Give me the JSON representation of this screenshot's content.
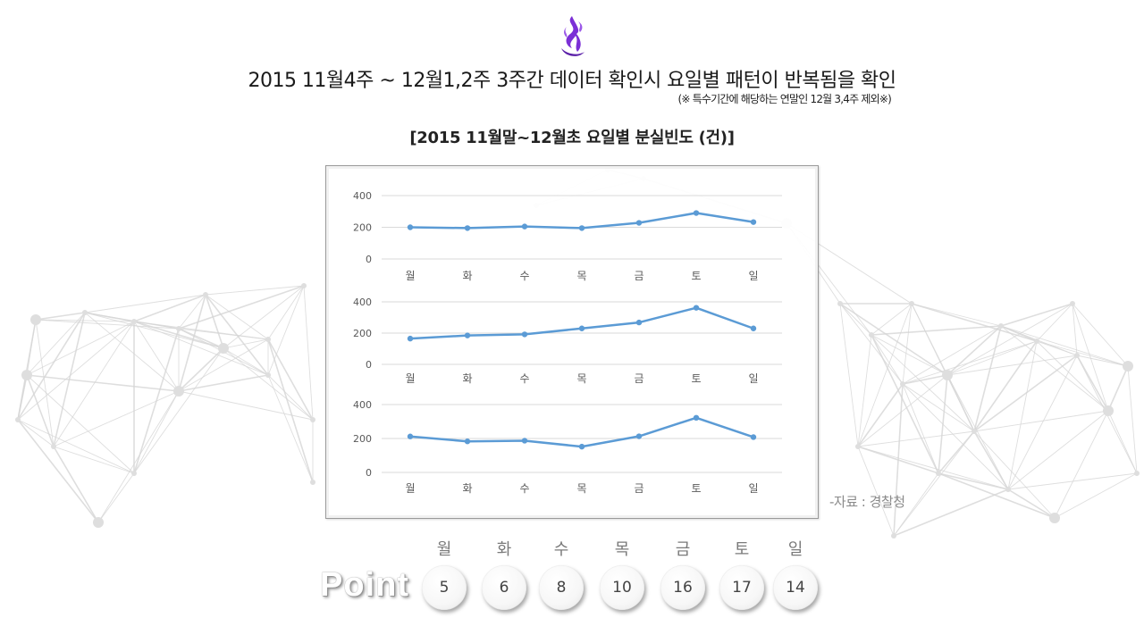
{
  "header": {
    "title": "2015 11월4주 ~ 12월1,2주 3주간 데이터 확인시 요일별 패턴이 반복됨을 확인",
    "note": "(※ 특수기간에 해당하는 연말인 12월 3,4주 제외※)"
  },
  "chart_title": "[2015  11월말~12월초  요일별 분실빈도 (건)]",
  "source": "-자료 : 경찰청",
  "colors": {
    "line": "#5b9bd5",
    "logo": "#7b2fd6",
    "grid": "#d9d9d9"
  },
  "chart_data": [
    {
      "type": "line",
      "categories": [
        "월",
        "화",
        "수",
        "목",
        "금",
        "토",
        "일"
      ],
      "series": [
        {
          "values": [
            200,
            195,
            205,
            195,
            228,
            290,
            233
          ]
        }
      ],
      "yticks": [
        0,
        200,
        400
      ],
      "ylim": [
        0,
        400
      ],
      "grid": true
    },
    {
      "type": "line",
      "categories": [
        "월",
        "화",
        "수",
        "목",
        "금",
        "토",
        "일"
      ],
      "series": [
        {
          "values": [
            165,
            185,
            192,
            230,
            268,
            362,
            230
          ]
        }
      ],
      "yticks": [
        0,
        200,
        400
      ],
      "ylim": [
        0,
        400
      ],
      "grid": true
    },
    {
      "type": "line",
      "categories": [
        "월",
        "화",
        "수",
        "목",
        "금",
        "토",
        "일"
      ],
      "series": [
        {
          "values": [
            212,
            183,
            187,
            152,
            213,
            322,
            208
          ]
        }
      ],
      "yticks": [
        0,
        200,
        400
      ],
      "ylim": [
        0,
        400
      ],
      "grid": true
    }
  ],
  "point": {
    "label": "Point",
    "days": [
      "월",
      "화",
      "수",
      "목",
      "금",
      "토",
      "일"
    ],
    "values": [
      "5",
      "6",
      "8",
      "10",
      "16",
      "17",
      "14"
    ]
  }
}
